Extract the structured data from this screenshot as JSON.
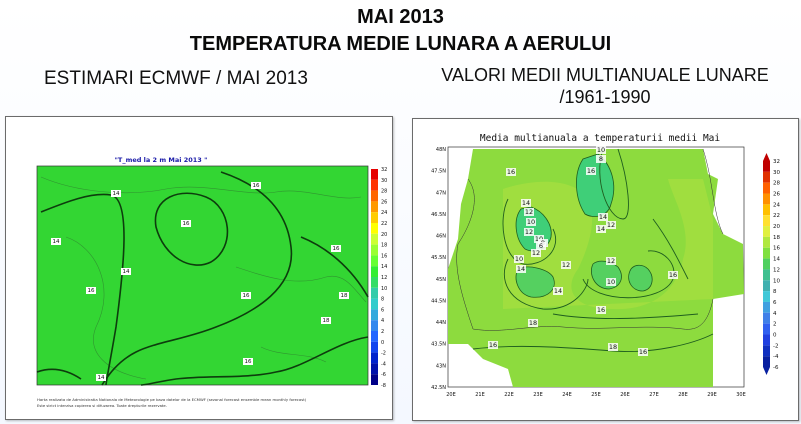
{
  "header": {
    "title_line1": "MAI 2013",
    "title_line2": "TEMPERATURA MEDIE LUNARA A AERULUI",
    "subtitle_left": "ESTIMARI ECMWF / MAI 2013",
    "subtitle_right_line1": "VALORI MEDII MULTIANUALE LUNARE",
    "subtitle_right_line2": "/1961-1990"
  },
  "left_map": {
    "title": "\"T_med la 2 m Mai 2013 \"",
    "footnote_line1": "Harta realizata de Administratia Nationala de Meteorologie pe baza datelor de la ECMWF (sezonal forecast ensemble mean monthly forecast)",
    "footnote_line2": "Este strict interzisa copierea si difuzarea. Toate drepturile rezervate.",
    "contour_labels": [
      "14",
      "16",
      "14",
      "14",
      "16",
      "16",
      "16",
      "16",
      "18",
      "18",
      "16",
      "14"
    ],
    "colorbar": {
      "labels": [
        "32",
        "30",
        "28",
        "26",
        "24",
        "22",
        "20",
        "18",
        "16",
        "14",
        "12",
        "10",
        "8",
        "6",
        "4",
        "2",
        "0",
        "-2",
        "-4",
        "-6",
        "-8"
      ],
      "colors": [
        "#e60000",
        "#ff3300",
        "#ff6600",
        "#ff9900",
        "#ffcc00",
        "#ffff00",
        "#ccff33",
        "#99ff33",
        "#66ff33",
        "#33ee33",
        "#33dd66",
        "#33ccaa",
        "#33cccc",
        "#33aadd",
        "#3388ee",
        "#2266ff",
        "#1144ee",
        "#0022cc",
        "#0011aa",
        "#000088"
      ]
    }
  },
  "right_map": {
    "title": "Media multianuala a temperaturii medii Mai",
    "lat_labels": [
      "48N",
      "47.5N",
      "47N",
      "46.5N",
      "46N",
      "45.5N",
      "45N",
      "44.5N",
      "44N",
      "43.5N",
      "43N",
      "42.5N"
    ],
    "lon_labels": [
      "20E",
      "21E",
      "22E",
      "23E",
      "24E",
      "25E",
      "26E",
      "27E",
      "28E",
      "29E",
      "30E"
    ],
    "contour_labels": [
      "10",
      "8",
      "16",
      "16",
      "14",
      "12",
      "10",
      "12",
      "14",
      "12",
      "14",
      "10",
      "8",
      "6",
      "12",
      "10",
      "12",
      "14",
      "12",
      "10",
      "14",
      "16",
      "16",
      "18",
      "16",
      "18",
      "16"
    ],
    "colorbar": {
      "labels": [
        "32",
        "30",
        "28",
        "26",
        "24",
        "22",
        "20",
        "18",
        "16",
        "14",
        "12",
        "10",
        "8",
        "6",
        "4",
        "2",
        "0",
        "-2",
        "-4",
        "-6"
      ],
      "colors": [
        "#c00000",
        "#e03000",
        "#ff6000",
        "#ff9000",
        "#ffc000",
        "#ffe030",
        "#e0f040",
        "#b0e840",
        "#80e040",
        "#50d060",
        "#40c090",
        "#40b0b0",
        "#40c8d8",
        "#40a0e0",
        "#4080e8",
        "#3060f0",
        "#2040e0",
        "#1030c0",
        "#0820a0"
      ]
    }
  }
}
